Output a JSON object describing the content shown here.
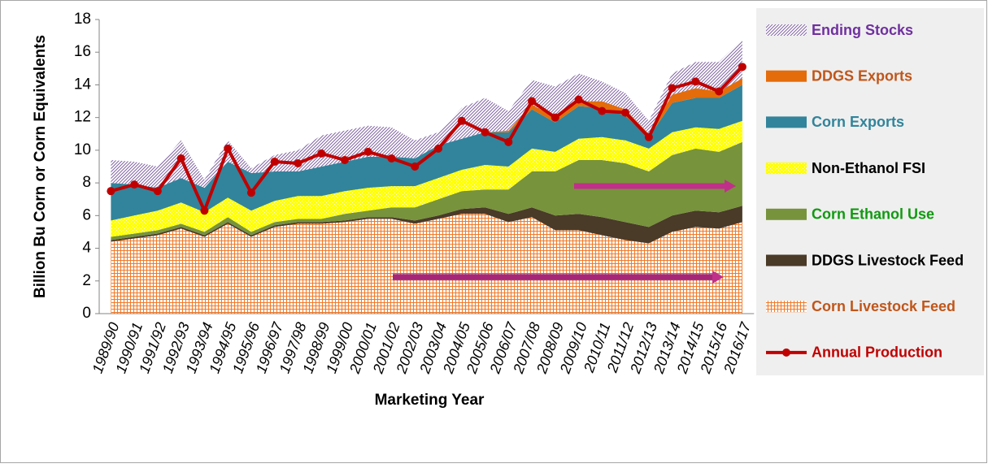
{
  "chart_data": {
    "type": "stacked-area",
    "x_label": "Marketing Year",
    "y_label": "Billion Bu Corn or Corn Equivalents",
    "categories": [
      "1989/90",
      "1990/91",
      "1991/92",
      "1992/93",
      "1993/94",
      "1994/95",
      "1995/96",
      "1996/97",
      "1997/98",
      "1998/99",
      "1999/00",
      "2000/01",
      "2001/02",
      "2002/03",
      "2003/04",
      "2004/05",
      "2005/06",
      "2006/07",
      "2007/08",
      "2008/09",
      "2009/10",
      "2010/11",
      "2011/12",
      "2012/13",
      "2013/14",
      "2014/15",
      "2015/16",
      "2016/17"
    ],
    "ylim": [
      0,
      18
    ],
    "yticks": [
      0,
      2,
      4,
      6,
      8,
      10,
      12,
      14,
      16,
      18
    ],
    "series": [
      {
        "name": "Corn Livestock Feed",
        "type": "area",
        "pattern": "grid",
        "color": "#f07a28",
        "legend_text_color": "#c0561a",
        "values": [
          4.4,
          4.6,
          4.8,
          5.2,
          4.7,
          5.5,
          4.7,
          5.3,
          5.5,
          5.5,
          5.6,
          5.8,
          5.8,
          5.5,
          5.8,
          6.1,
          6.1,
          5.6,
          5.9,
          5.1,
          5.1,
          4.8,
          4.5,
          4.3,
          5.0,
          5.3,
          5.2,
          5.6
        ]
      },
      {
        "name": "DDGS Livestock Feed",
        "type": "area",
        "pattern": "solid",
        "color": "#4a3a28",
        "legend_text_color": "#000000",
        "values": [
          0.1,
          0.1,
          0.1,
          0.1,
          0.1,
          0.1,
          0.1,
          0.1,
          0.1,
          0.1,
          0.1,
          0.1,
          0.1,
          0.2,
          0.2,
          0.3,
          0.4,
          0.5,
          0.6,
          0.9,
          1.0,
          1.1,
          1.1,
          1.0,
          1.0,
          1.0,
          1.0,
          1.0
        ]
      },
      {
        "name": "Corn Ethanol Use",
        "type": "area",
        "pattern": "solid",
        "color": "#77933c",
        "legend_text_color": "#119a11",
        "values": [
          0.2,
          0.2,
          0.2,
          0.2,
          0.2,
          0.3,
          0.2,
          0.2,
          0.2,
          0.2,
          0.4,
          0.4,
          0.6,
          0.8,
          1.0,
          1.1,
          1.1,
          1.5,
          2.2,
          2.7,
          3.3,
          3.5,
          3.6,
          3.4,
          3.7,
          3.8,
          3.7,
          3.9
        ]
      },
      {
        "name": "Non-Ethanol FSI",
        "type": "area",
        "pattern": "dots",
        "color": "#ffff00",
        "legend_text_color": "#000000",
        "values": [
          1.0,
          1.1,
          1.2,
          1.3,
          1.2,
          1.2,
          1.3,
          1.3,
          1.4,
          1.4,
          1.4,
          1.4,
          1.3,
          1.3,
          1.3,
          1.3,
          1.5,
          1.4,
          1.4,
          1.2,
          1.3,
          1.4,
          1.4,
          1.4,
          1.4,
          1.3,
          1.4,
          1.3
        ]
      },
      {
        "name": "Corn Exports",
        "type": "area",
        "pattern": "solid",
        "color": "#31849b",
        "legend_text_color": "#31849b",
        "values": [
          2.3,
          1.9,
          1.4,
          1.5,
          1.5,
          2.2,
          2.3,
          1.8,
          1.5,
          1.8,
          1.8,
          1.9,
          1.8,
          1.7,
          2.0,
          1.9,
          2.0,
          2.1,
          2.4,
          1.8,
          2.0,
          1.8,
          1.5,
          0.7,
          1.8,
          1.8,
          1.9,
          2.2
        ]
      },
      {
        "name": "DDGS Exports",
        "type": "area",
        "pattern": "solid",
        "color": "#e46c0a",
        "legend_text_color": "#c0561a",
        "values": [
          0,
          0,
          0,
          0,
          0,
          0,
          0,
          0,
          0,
          0,
          0,
          0,
          0,
          0,
          0,
          0,
          0,
          0.1,
          0.3,
          0.3,
          0.3,
          0.4,
          0.4,
          0.2,
          0.5,
          0.6,
          0.4,
          0.4
        ]
      },
      {
        "name": "Ending Stocks",
        "type": "area",
        "pattern": "hatch",
        "color": "#8064a2",
        "legend_text_color": "#7030a0",
        "values": [
          1.4,
          1.4,
          1.3,
          2.3,
          0.5,
          1.3,
          0.3,
          1.0,
          1.3,
          1.9,
          1.9,
          1.9,
          1.8,
          1.1,
          0.8,
          1.9,
          2.1,
          1.2,
          1.5,
          1.9,
          1.7,
          1.2,
          1.0,
          0.8,
          1.3,
          1.6,
          1.8,
          2.4
        ]
      },
      {
        "name": "Annual Production",
        "type": "line",
        "color": "#c00000",
        "legend_text_color": "#c00000",
        "values": [
          7.5,
          7.9,
          7.5,
          9.5,
          6.3,
          10.1,
          7.4,
          9.3,
          9.2,
          9.8,
          9.4,
          9.9,
          9.5,
          9.0,
          10.1,
          11.8,
          11.1,
          10.5,
          13.0,
          12.0,
          13.1,
          12.4,
          12.3,
          10.8,
          13.8,
          14.2,
          13.6,
          15.1
        ]
      }
    ]
  }
}
